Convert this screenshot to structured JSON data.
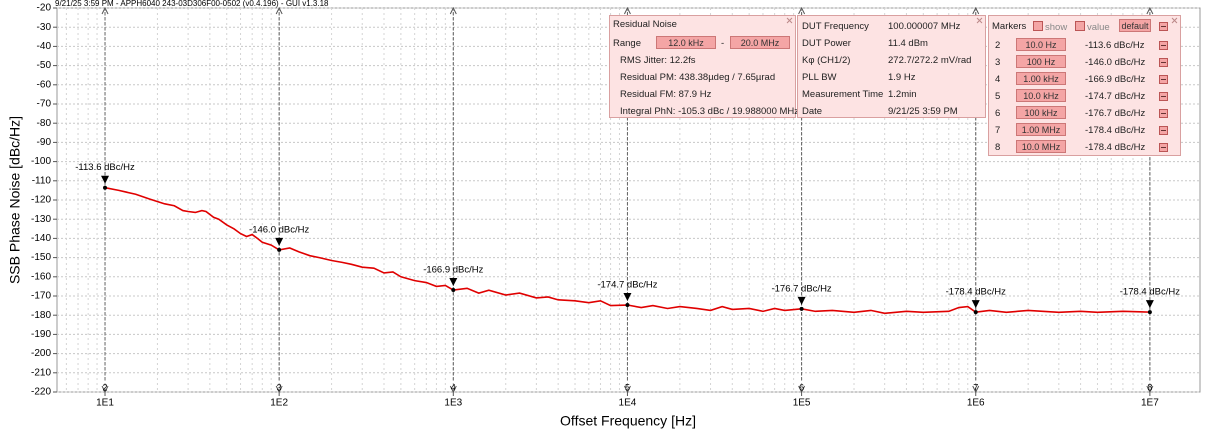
{
  "header": "9/21/25 3:59 PM - APPH6040 243-03D306F00-0502 (v0.4.196) - GUI v1.3.18",
  "chart_data": {
    "type": "line",
    "x_label": "Offset Frequency [Hz]",
    "y_label": "SSB Phase Noise [dBc/Hz]",
    "xlog": true,
    "grid": true,
    "xlim": [
      5.3,
      19400000
    ],
    "ylim": [
      -220,
      -20
    ],
    "xticks": [
      {
        "value": 10,
        "label": "1E1"
      },
      {
        "value": 100,
        "label": "1E2"
      },
      {
        "value": 1000,
        "label": "1E3"
      },
      {
        "value": 10000,
        "label": "1E4"
      },
      {
        "value": 100000,
        "label": "1E5"
      },
      {
        "value": 1000000,
        "label": "1E6"
      },
      {
        "value": 10000000,
        "label": "1E7"
      }
    ],
    "yticks": [
      -20,
      -30,
      -40,
      -50,
      -60,
      -70,
      -80,
      -90,
      -100,
      -110,
      -120,
      -130,
      -140,
      -150,
      -160,
      -170,
      -180,
      -190,
      -200,
      -210,
      -220
    ],
    "x": [
      10,
      12,
      15,
      18,
      22,
      25,
      28,
      30,
      33,
      36,
      38,
      42,
      45,
      50,
      55,
      60,
      65,
      70,
      75,
      80,
      90,
      100,
      115,
      130,
      150,
      170,
      200,
      230,
      260,
      300,
      350,
      400,
      450,
      500,
      600,
      700,
      800,
      900,
      1000,
      1200,
      1400,
      1600,
      2000,
      2400,
      3000,
      3500,
      4000,
      5000,
      6000,
      7000,
      8000,
      10000,
      12000,
      14000,
      17000,
      20000,
      25000,
      30000,
      35000,
      40000,
      50000,
      60000,
      70000,
      80000,
      100000,
      120000,
      150000,
      200000,
      250000,
      300000,
      400000,
      500000,
      700000,
      800000,
      900000,
      1000000,
      1200000,
      1500000,
      2000000,
      3000000,
      4000000,
      5000000,
      7000000,
      10000000
    ],
    "series": [
      {
        "color": "#e00000",
        "values": [
          -113.6,
          -115,
          -117,
          -119.5,
          -122,
          -123,
          -125.5,
          -126,
          -126.5,
          -125.5,
          -126,
          -129,
          -130,
          -133,
          -135,
          -137.5,
          -139,
          -138,
          -140,
          -142,
          -143.5,
          -146,
          -145,
          -147,
          -149,
          -150,
          -151.5,
          -152.5,
          -153.5,
          -155,
          -155.5,
          -158,
          -157.5,
          -160,
          -162,
          -163,
          -165,
          -164.5,
          -166.9,
          -166,
          -168.5,
          -167,
          -169.5,
          -168.5,
          -171,
          -170.5,
          -172,
          -172.5,
          -173.5,
          -172.5,
          -175,
          -174.7,
          -176,
          -175,
          -176.5,
          -175.5,
          -176.5,
          -177.5,
          -175.5,
          -177,
          -176.5,
          -178,
          -176.5,
          -177.5,
          -176.7,
          -178,
          -177.5,
          -178.5,
          -177.5,
          -179,
          -178,
          -178.5,
          -178,
          -176,
          -175.5,
          -178.4,
          -177.5,
          -178.5,
          -177.5,
          -178.5,
          -178,
          -178.5,
          -178,
          -178.4
        ]
      }
    ],
    "markers": [
      {
        "id": "2",
        "x": 10,
        "freq_label": "10.0 Hz",
        "value": -113.6,
        "label": "-113.6 dBc/Hz"
      },
      {
        "id": "3",
        "x": 100,
        "freq_label": "100 Hz",
        "value": -146.0,
        "label": "-146.0 dBc/Hz"
      },
      {
        "id": "4",
        "x": 1000,
        "freq_label": "1.00 kHz",
        "value": -166.9,
        "label": "-166.9 dBc/Hz"
      },
      {
        "id": "5",
        "x": 10000,
        "freq_label": "10.0 kHz",
        "value": -174.7,
        "label": "-174.7 dBc/Hz"
      },
      {
        "id": "6",
        "x": 100000,
        "freq_label": "100 kHz",
        "value": -176.7,
        "label": "-176.7 dBc/Hz"
      },
      {
        "id": "7",
        "x": 1000000,
        "freq_label": "1.00 MHz",
        "value": -178.4,
        "label": "-178.4 dBc/Hz"
      },
      {
        "id": "8",
        "x": 10000000,
        "freq_label": "10.0 MHz",
        "value": -178.4,
        "label": "-178.4 dBc/Hz"
      }
    ]
  },
  "residual_noise": {
    "title": "Residual Noise",
    "range_label": "Range",
    "range_from": "12.0 kHz",
    "range_sep": "-",
    "range_to": "20.0 MHz",
    "rows": [
      "RMS Jitter: 12.2fs",
      "Residual PM: 438.38µdeg / 7.65µrad",
      "Residual FM: 87.9 Hz",
      "Integral PhN: -105.3 dBc / 19.988000 MHz"
    ]
  },
  "dut": {
    "rows": [
      [
        "DUT Frequency",
        "100.000007 MHz"
      ],
      [
        "DUT Power",
        "11.4 dBm"
      ],
      [
        "Kφ (CH1/2)",
        "272.7/272.2 mV/rad"
      ],
      [
        "PLL BW",
        "1.9 Hz"
      ],
      [
        "Measurement Time",
        "1.2min"
      ],
      [
        "Date",
        "9/21/25 3:59 PM"
      ]
    ]
  },
  "markers_panel": {
    "title": "Markers",
    "show": "show",
    "value": "value",
    "default": "default"
  }
}
